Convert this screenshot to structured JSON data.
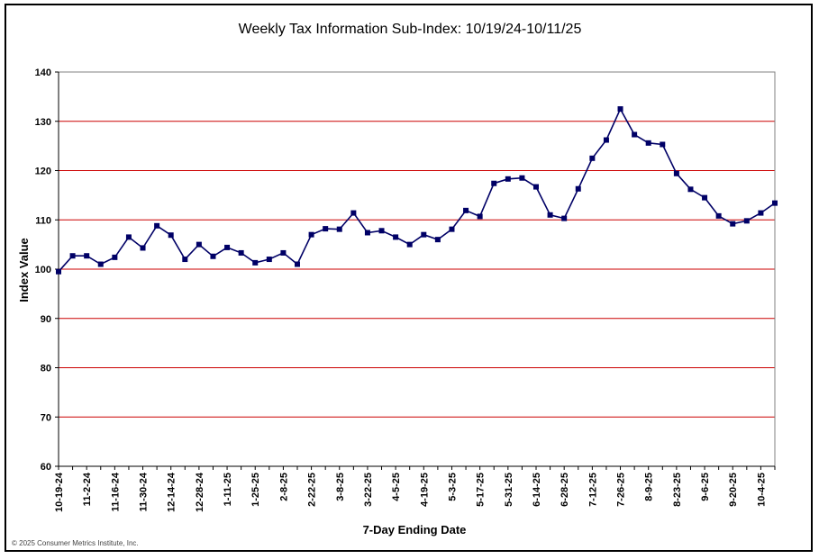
{
  "copyright": "© 2025 Consumer Metrics Institute, Inc.",
  "colors": {
    "grid": "#cc0000",
    "series": "#000066",
    "axis": "#000000"
  },
  "chart_data": {
    "type": "line",
    "title": "Weekly Tax Information Sub-Index: 10/19/24-10/11/25",
    "xlabel": "7-Day Ending Date",
    "ylabel": "Index Value",
    "ylim": [
      60,
      140
    ],
    "yticks": [
      60,
      70,
      80,
      90,
      100,
      110,
      120,
      130,
      140
    ],
    "grid": true,
    "legend": "none",
    "x_tick_labels": [
      "10-19-24",
      "11-2-24",
      "11-16-24",
      "11-30-24",
      "12-14-24",
      "12-28-24",
      "1-11-25",
      "1-25-25",
      "2-8-25",
      "2-22-25",
      "3-8-25",
      "3-22-25",
      "4-5-25",
      "4-19-25",
      "5-3-25",
      "5-17-25",
      "5-31-25",
      "6-14-25",
      "6-28-25",
      "7-12-25",
      "7-26-25",
      "8-9-25",
      "8-23-25",
      "9-6-25",
      "9-20-25",
      "10-4-25"
    ],
    "series": [
      {
        "values": [
          99.5,
          102.7,
          102.7,
          101.0,
          102.4,
          106.5,
          104.3,
          108.8,
          106.9,
          102.0,
          105.0,
          102.6,
          104.4,
          103.3,
          101.3,
          102.0,
          103.3,
          101.0,
          107.0,
          108.2,
          108.1,
          111.4,
          107.4,
          107.8,
          106.5,
          105.0,
          107.0,
          106.0,
          108.1,
          111.9,
          110.7,
          117.4,
          118.3,
          118.5,
          116.7,
          111.0,
          110.3,
          116.3,
          122.5,
          126.2,
          132.5,
          127.3,
          125.6,
          125.3,
          119.4,
          116.2,
          114.5,
          110.8,
          109.2,
          109.8,
          111.4,
          113.4
        ]
      }
    ]
  }
}
